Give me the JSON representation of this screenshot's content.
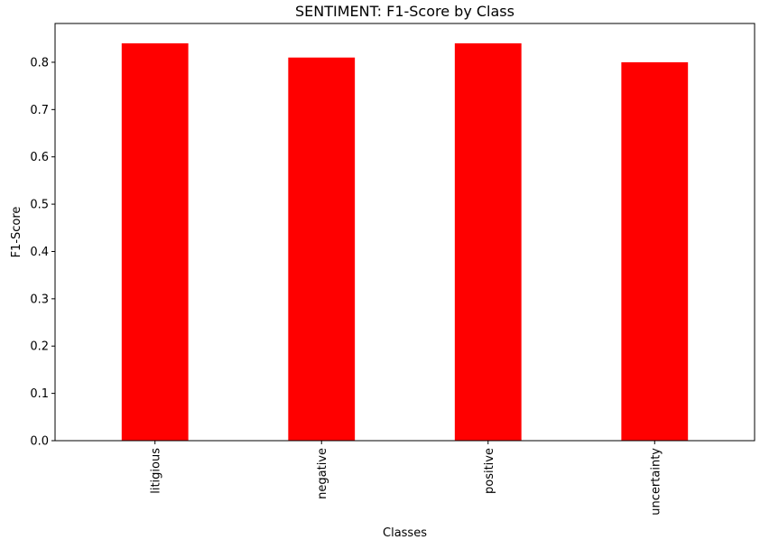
{
  "chart_data": {
    "type": "bar",
    "title": "SENTIMENT: F1-Score by Class",
    "xlabel": "Classes",
    "ylabel": "F1-Score",
    "categories": [
      "litigious",
      "negative",
      "positive",
      "uncertainty"
    ],
    "values": [
      0.84,
      0.81,
      0.84,
      0.8
    ],
    "ylim": [
      0,
      0.882
    ],
    "yticks": [
      0.0,
      0.1,
      0.2,
      0.3,
      0.4,
      0.5,
      0.6,
      0.7,
      0.8
    ],
    "ytick_labels": [
      "0.0",
      "0.1",
      "0.2",
      "0.3",
      "0.4",
      "0.5",
      "0.6",
      "0.7",
      "0.8"
    ],
    "grid": false,
    "bar_color": "#ff0000",
    "xtick_rotation": "vertical"
  }
}
